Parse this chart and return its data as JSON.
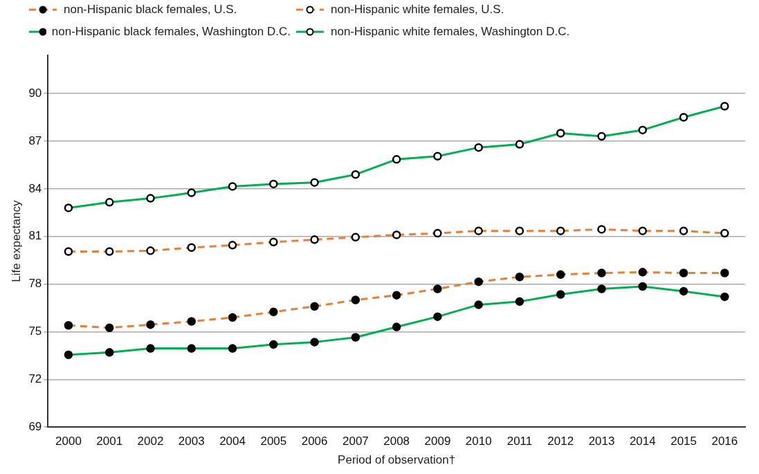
{
  "chart_data": {
    "type": "line",
    "xlabel": "Period of observation†",
    "ylabel": "Life expectancy",
    "categories": [
      "2000",
      "2001",
      "2002",
      "2003",
      "2004",
      "2005",
      "2006",
      "2007",
      "2008",
      "2009",
      "2010",
      "2011",
      "2012",
      "2013",
      "2014",
      "2015",
      "2016"
    ],
    "series": [
      {
        "name": "non-Hispanic black females, U.S.",
        "color": "#ed7d31",
        "line_style": "dashed",
        "values": [
          75.4,
          75.25,
          75.45,
          75.65,
          75.9,
          76.25,
          76.6,
          77.0,
          77.3,
          77.7,
          78.15,
          78.45,
          78.6,
          78.7,
          78.75,
          78.7,
          78.7
        ]
      },
      {
        "name": "non-Hispanic white females, U.S.",
        "color": "#ed7d31",
        "line_style": "dashed",
        "values": [
          80.05,
          80.05,
          80.1,
          80.3,
          80.45,
          80.65,
          80.8,
          80.95,
          81.1,
          81.2,
          81.35,
          81.35,
          81.35,
          81.45,
          81.35,
          81.35,
          81.2
        ]
      },
      {
        "name": "non-Hispanic black females, Washington D.C.",
        "color": "#00b050",
        "line_style": "solid",
        "values": [
          73.55,
          73.7,
          73.95,
          73.95,
          73.95,
          74.2,
          74.35,
          74.65,
          75.3,
          75.95,
          76.7,
          76.9,
          77.35,
          77.7,
          77.85,
          77.55,
          77.2
        ]
      },
      {
        "name": "non-Hispanic white females, Washington D.C.",
        "color": "#00b050",
        "line_style": "solid",
        "values": [
          82.8,
          83.15,
          83.4,
          83.75,
          84.15,
          84.3,
          84.4,
          84.9,
          85.85,
          86.05,
          86.6,
          86.8,
          87.5,
          87.3,
          87.7,
          88.5,
          89.2
        ]
      }
    ],
    "ylim": [
      69,
      92.4
    ],
    "yticks": [
      69,
      72,
      75,
      78,
      81,
      84,
      87,
      90
    ],
    "grid": "y",
    "legend": "top",
    "marker": "circle"
  }
}
